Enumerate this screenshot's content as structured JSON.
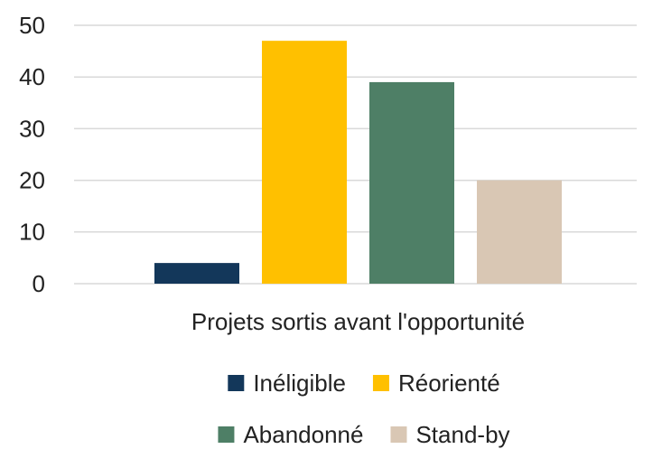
{
  "chart_data": {
    "type": "bar",
    "categories": [
      "Projets sortis avant l'opportunité"
    ],
    "series": [
      {
        "name": "Inéligible",
        "color": "#13375a",
        "values": [
          4
        ]
      },
      {
        "name": "Réorienté",
        "color": "#ffc000",
        "values": [
          47
        ]
      },
      {
        "name": "Abandonné",
        "color": "#4e7f66",
        "values": [
          39
        ]
      },
      {
        "name": "Stand-by",
        "color": "#d9c7b4",
        "values": [
          20
        ]
      }
    ],
    "ylim": [
      0,
      50
    ],
    "yticks": [
      0,
      10,
      20,
      30,
      40,
      50
    ],
    "grid": true,
    "legend": "bottom"
  }
}
